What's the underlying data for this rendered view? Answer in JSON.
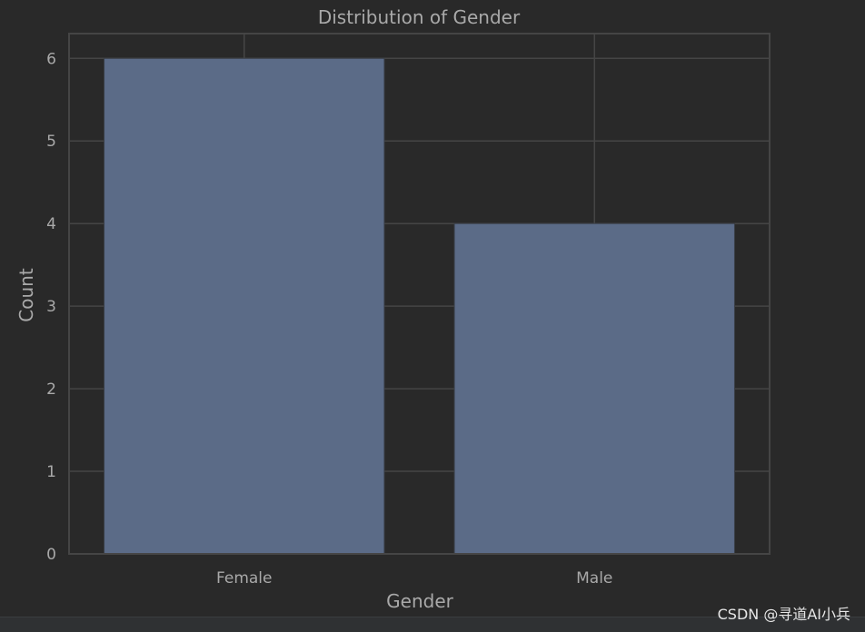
{
  "chart_data": {
    "type": "bar",
    "title": "Distribution of Gender",
    "xlabel": "Gender",
    "ylabel": "Count",
    "categories": [
      "Female",
      "Male"
    ],
    "values": [
      6,
      4
    ],
    "ylim": [
      0,
      6.3
    ],
    "yticks": [
      "0",
      "1",
      "2",
      "3",
      "4",
      "5",
      "6"
    ],
    "grid": true,
    "colors": {
      "bar": "#5b6b87",
      "background": "#292929",
      "grid": "#454545",
      "text": "#a9a9a9"
    }
  },
  "watermark": "CSDN @寻道AI小兵"
}
